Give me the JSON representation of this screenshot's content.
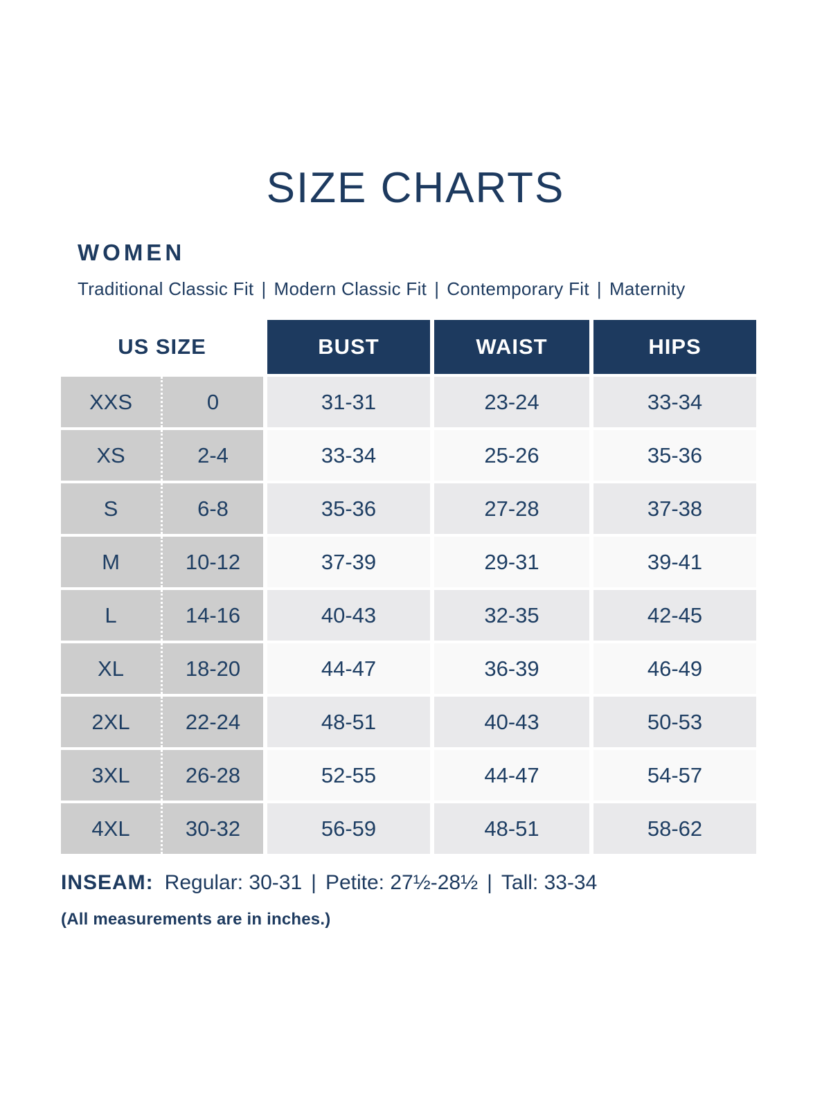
{
  "page": {
    "title": "SIZE CHARTS",
    "section_heading": "WOMEN",
    "fit_types": [
      "Traditional Classic Fit",
      "Modern Classic Fit",
      "Contemporary Fit",
      "Maternity"
    ],
    "separator": "|"
  },
  "size_table": {
    "us_size_header": "US SIZE",
    "measure_headers": [
      "BUST",
      "WAIST",
      "HIPS"
    ],
    "rows": [
      {
        "size": "XXS",
        "us": "0",
        "bust": "31-31",
        "waist": "23-24",
        "hips": "33-34"
      },
      {
        "size": "XS",
        "us": "2-4",
        "bust": "33-34",
        "waist": "25-26",
        "hips": "35-36"
      },
      {
        "size": "S",
        "us": "6-8",
        "bust": "35-36",
        "waist": "27-28",
        "hips": "37-38"
      },
      {
        "size": "M",
        "us": "10-12",
        "bust": "37-39",
        "waist": "29-31",
        "hips": "39-41"
      },
      {
        "size": "L",
        "us": "14-16",
        "bust": "40-43",
        "waist": "32-35",
        "hips": "42-45"
      },
      {
        "size": "XL",
        "us": "18-20",
        "bust": "44-47",
        "waist": "36-39",
        "hips": "46-49"
      },
      {
        "size": "2XL",
        "us": "22-24",
        "bust": "48-51",
        "waist": "40-43",
        "hips": "50-53"
      },
      {
        "size": "3XL",
        "us": "26-28",
        "bust": "52-55",
        "waist": "44-47",
        "hips": "54-57"
      },
      {
        "size": "4XL",
        "us": "30-32",
        "bust": "56-59",
        "waist": "48-51",
        "hips": "58-62"
      }
    ]
  },
  "inseam": {
    "label": "INSEAM:",
    "entries": [
      "Regular: 30-31",
      "Petite: 27½-28½",
      "Tall: 33-34"
    ],
    "separator": "|"
  },
  "footnote": "(All measurements are in inches.)",
  "colors": {
    "navy": "#1d3a5f",
    "table_text_navy": "#1e3e63",
    "header_text": "#ffffff",
    "size_column_bg": "#cdcdcd",
    "row_odd_bg": "#e9e9eb",
    "row_even_bg": "#f9f9f9"
  },
  "chart_data": {
    "type": "table",
    "title": "SIZE CHARTS",
    "section": "WOMEN",
    "fits": [
      "Traditional Classic Fit",
      "Modern Classic Fit",
      "Contemporary Fit",
      "Maternity"
    ],
    "columns": [
      "SIZE",
      "US SIZE",
      "BUST",
      "WAIST",
      "HIPS"
    ],
    "rows": [
      [
        "XXS",
        "0",
        "31-31",
        "23-24",
        "33-34"
      ],
      [
        "XS",
        "2-4",
        "33-34",
        "25-26",
        "35-36"
      ],
      [
        "S",
        "6-8",
        "35-36",
        "27-28",
        "37-38"
      ],
      [
        "M",
        "10-12",
        "37-39",
        "29-31",
        "39-41"
      ],
      [
        "L",
        "14-16",
        "40-43",
        "32-35",
        "42-45"
      ],
      [
        "XL",
        "18-20",
        "44-47",
        "36-39",
        "46-49"
      ],
      [
        "2XL",
        "22-24",
        "48-51",
        "40-43",
        "50-53"
      ],
      [
        "3XL",
        "26-28",
        "52-55",
        "44-47",
        "54-57"
      ],
      [
        "4XL",
        "30-32",
        "56-59",
        "48-51",
        "58-62"
      ]
    ],
    "inseam": {
      "Regular": "30-31",
      "Petite": "27½-28½",
      "Tall": "33-34"
    },
    "note": "(All measurements are in inches.)"
  }
}
